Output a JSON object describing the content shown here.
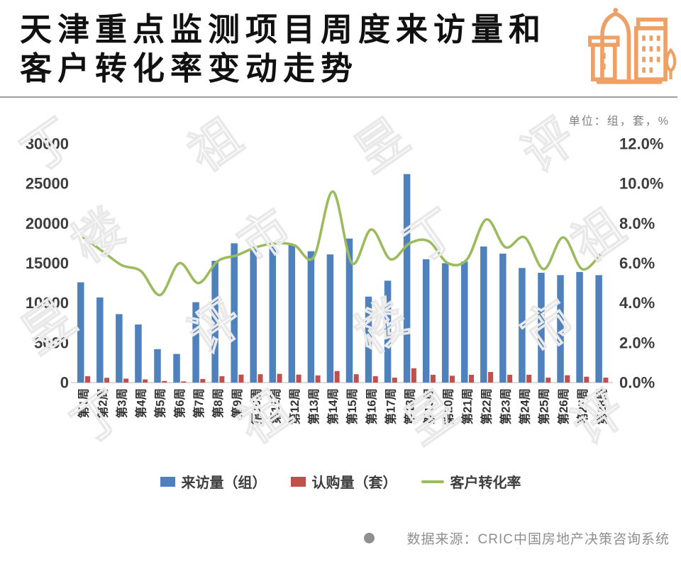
{
  "header": {
    "title_line1": "天津重点监测项目周度来访量和",
    "title_line2": "客户转化率变动走势",
    "unit_label": "单位：组，套，%"
  },
  "icon": {
    "name": "buildings-icon",
    "color": "#EDA166"
  },
  "watermark": {
    "text": "丁祖昱评楼市"
  },
  "chart_data": {
    "type": "bar",
    "subtype": "bar+line combo, dual axis",
    "categories": [
      "第1周",
      "第2周",
      "第3周",
      "第4周",
      "第5周",
      "第6周",
      "第7周",
      "第8周",
      "第9周",
      "第10周",
      "第11周",
      "第12周",
      "第13周",
      "第14周",
      "第15周",
      "第16周",
      "第17周",
      "第18周",
      "第19周",
      "第20周",
      "第21周",
      "第22周",
      "第23周",
      "第24周",
      "第25周",
      "第26周",
      "第27周",
      "第28周"
    ],
    "series": [
      {
        "name": "来访量（组）",
        "type": "bar",
        "axis": "left",
        "color": "#4F81BD",
        "values": [
          12600,
          10700,
          8600,
          7300,
          4200,
          3600,
          10100,
          15300,
          17500,
          17100,
          17100,
          17400,
          16500,
          16100,
          18100,
          10800,
          12800,
          26200,
          15500,
          15000,
          15200,
          17100,
          16200,
          14400,
          13800,
          13500,
          13900,
          13500
        ]
      },
      {
        "name": "认购量（套）",
        "type": "bar",
        "axis": "left",
        "color": "#C0504D",
        "values": [
          800,
          600,
          500,
          400,
          200,
          150,
          450,
          800,
          1000,
          1050,
          1100,
          1000,
          900,
          1450,
          1050,
          800,
          620,
          1800,
          980,
          860,
          980,
          1330,
          980,
          980,
          620,
          920,
          740,
          620
        ]
      },
      {
        "name": "客户转化率",
        "type": "line",
        "axis": "right",
        "color": "#9CBB5E",
        "values_percent": [
          7.3,
          6.6,
          5.9,
          5.6,
          4.4,
          6.0,
          5.0,
          6.1,
          6.4,
          6.8,
          7.0,
          6.9,
          6.3,
          9.6,
          6.0,
          7.7,
          6.2,
          7.0,
          7.1,
          6.0,
          6.2,
          8.2,
          6.8,
          7.3,
          5.7,
          7.3,
          5.7,
          6.5
        ]
      }
    ],
    "left_axis": {
      "ticks": [
        "30000",
        "25000",
        "20000",
        "15000",
        "10000",
        "5000",
        "0"
      ],
      "min": 0,
      "max": 30000
    },
    "right_axis": {
      "ticks": [
        "12.0%",
        "10.0%",
        "8.0%",
        "6.0%",
        "4.0%",
        "2.0%",
        "0.0%"
      ],
      "min": 0,
      "max": 12
    },
    "grid": false,
    "legend_position": "bottom",
    "title": "天津重点监测项目周度来访量和客户转化率变动走势",
    "xlabel": "",
    "ylabel_left": "组/套",
    "ylabel_right": "%"
  },
  "footer": {
    "bullet": "●",
    "source": "数据来源：CRIC中国房地产决策咨询系统"
  }
}
